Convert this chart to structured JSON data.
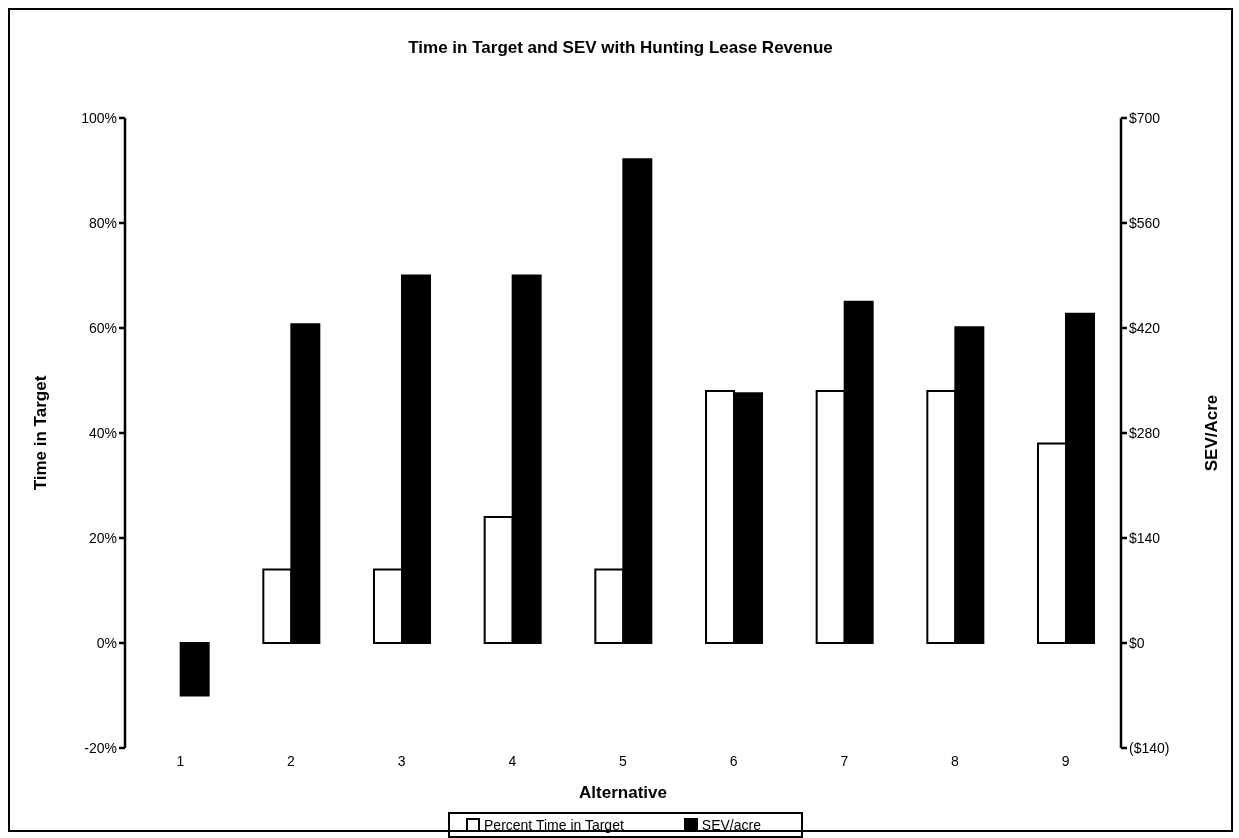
{
  "chart_data": {
    "type": "bar",
    "title": "Time in Target and SEV with Hunting Lease Revenue",
    "xlabel": "Alternative",
    "ylabel": "Time in Target",
    "y2label": "SEV/Acre",
    "categories": [
      "1",
      "2",
      "3",
      "4",
      "5",
      "6",
      "7",
      "8",
      "9"
    ],
    "series": [
      {
        "name": "Percent Time in Target",
        "color": "#ffffff",
        "values": [
          0,
          14,
          14,
          24,
          14,
          48,
          48,
          48,
          38
        ]
      },
      {
        "name": "SEV/acre",
        "color": "#000000",
        "axis": "y2",
        "values": [
          -70,
          425,
          490,
          490,
          645,
          333,
          455,
          421,
          439
        ]
      }
    ],
    "ylim": [
      -20,
      100
    ],
    "yticks": [
      {
        "value": -20,
        "label": "-20%"
      },
      {
        "value": 0,
        "label": "0%"
      },
      {
        "value": 20,
        "label": "20%"
      },
      {
        "value": 40,
        "label": "40%"
      },
      {
        "value": 60,
        "label": "60%"
      },
      {
        "value": 80,
        "label": "80%"
      },
      {
        "value": 100,
        "label": "100%"
      }
    ],
    "y2lim": [
      -140,
      700
    ],
    "y2ticks": [
      {
        "value": -140,
        "label": "($140)"
      },
      {
        "value": 0,
        "label": "$0"
      },
      {
        "value": 140,
        "label": "$140"
      },
      {
        "value": 280,
        "label": "$280"
      },
      {
        "value": 420,
        "label": "$420"
      },
      {
        "value": 560,
        "label": "$560"
      },
      {
        "value": 700,
        "label": "$700"
      }
    ],
    "grid": false,
    "legend": "bottom"
  }
}
